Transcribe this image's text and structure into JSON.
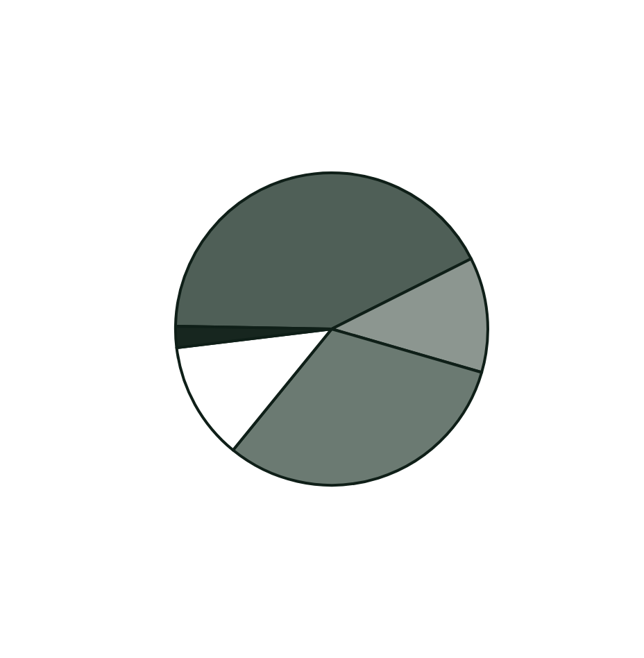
{
  "chart_data": {
    "type": "pie",
    "categories": [
      null,
      null,
      null,
      null,
      null
    ],
    "values": [
      42.3,
      11.9,
      31.4,
      12.2,
      2.2
    ],
    "colors": [
      "#4f5f57",
      "#8c9690",
      "#6b7a72",
      "#ffffff",
      "#17261f"
    ]
  }
}
